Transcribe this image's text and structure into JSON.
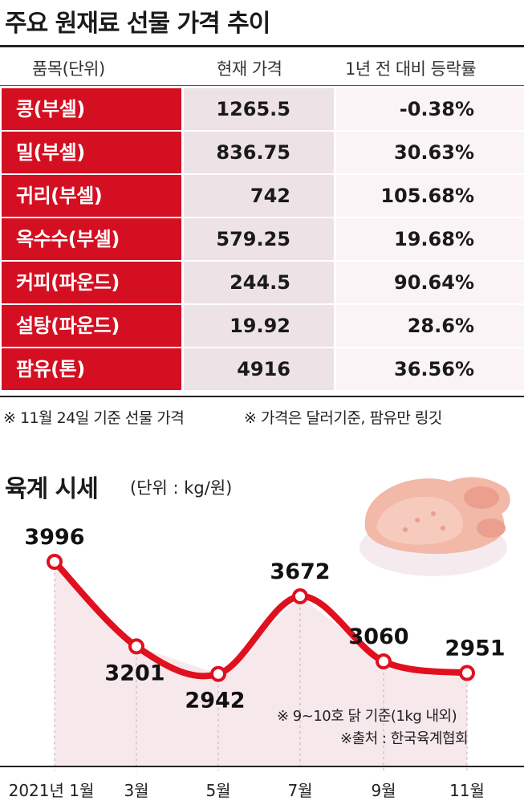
{
  "title": "주요 원재료 선물 가격 추이",
  "table": {
    "headers": [
      "품목(단위)",
      "현재 가격",
      "1년 전 대비 등락률"
    ],
    "rows": [
      {
        "name": "콩(부셀)",
        "price": "1265.5",
        "change": "-0.38%"
      },
      {
        "name": "밀(부셀)",
        "price": "836.75",
        "change": "30.63%"
      },
      {
        "name": "귀리(부셀)",
        "price": "742",
        "change": "105.68%"
      },
      {
        "name": "옥수수(부셀)",
        "price": "579.25",
        "change": "19.68%"
      },
      {
        "name": "커피(파운드)",
        "price": "244.5",
        "change": "90.64%"
      },
      {
        "name": "설탕(파운드)",
        "price": "19.92",
        "change": "28.6%"
      },
      {
        "name": "팜유(톤)",
        "price": "4916",
        "change": "36.56%"
      }
    ]
  },
  "notes": {
    "note1": "※ 11월 24일 기준 선물 가격",
    "note2": "※ 가격은 달러기준, 팜유만 링깃"
  },
  "chart_section": {
    "title": "육계 시세",
    "unit": "(단위 :  kg/원)",
    "footnote1": "※ 9~10호 닭 기준(1kg 내외)",
    "footnote2": "※출처 : 한국육계협회"
  },
  "chart_data": {
    "type": "line",
    "title": "육계 시세",
    "ylabel": "kg/원",
    "categories": [
      "2021년 1월",
      "3월",
      "5월",
      "7월",
      "9월",
      "11월"
    ],
    "values": [
      3996,
      3201,
      2942,
      3672,
      3060,
      2951
    ],
    "ylim": [
      2900,
      4000
    ],
    "colors": {
      "line": "#e0101e",
      "fill": "#f7e8ec",
      "marker_fill": "#ffffff"
    }
  },
  "colors": {
    "accent": "#d40f22",
    "price_bg": "#ede2e6",
    "change_bg": "#fbf4f6"
  }
}
